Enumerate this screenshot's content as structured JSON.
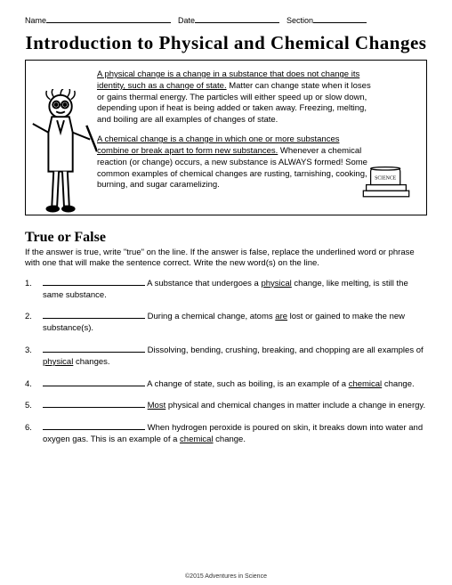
{
  "header": {
    "name_label": "Name",
    "date_label": "Date",
    "section_label": "Section",
    "name_blank_width": 140,
    "date_blank_width": 95,
    "section_blank_width": 60
  },
  "title": "Introduction to Physical and Chemical Changes",
  "intro": {
    "para1_u": "A physical change is a change in a substance that does not change its identity, such as a change of state.",
    "para1_rest": "  Matter can change state when it loses or gains thermal energy.  The particles will either speed up or slow down, depending upon if heat is being added or taken away.  Freezing, melting, and boiling are all examples of changes of state.",
    "para2_u": "A chemical change is a change in which one or more substances combine or break apart to form new substances.",
    "para2_rest": "  Whenever a chemical reaction (or change) occurs, a new substance is ALWAYS formed! Some common examples of chemical changes are rusting, tarnishing, cooking, burning, and sugar caramelizing.",
    "book_label": "SCIENCE"
  },
  "tf": {
    "title": "True or False",
    "instructions": "If the answer is true, write \"true\" on the line.  If the answer is false, replace the underlined word or phrase with one that will make the sentence correct.  Write the new word(s) on the line.",
    "items": [
      {
        "n": "1.",
        "pre": " A substance that undergoes a ",
        "u": "physical",
        "post": " change, like melting, is still the same substance."
      },
      {
        "n": "2.",
        "pre": " During a chemical change, atoms ",
        "u": "are",
        "post": " lost or gained to make the new substance(s)."
      },
      {
        "n": "3.",
        "pre": " Dissolving, bending, crushing, breaking, and chopping are all examples of ",
        "u": "physical",
        "post": " changes."
      },
      {
        "n": "4.",
        "pre": " A change of state, such as boiling, is an example of a ",
        "u": "chemical",
        "post": " change."
      },
      {
        "n": "5.",
        "pre": " ",
        "u": "Most",
        "post": " physical and chemical changes in matter include a change in energy."
      },
      {
        "n": "6.",
        "pre": " When hydrogen peroxide is poured on skin, it breaks down into water and oxygen gas.  This is an example of a ",
        "u": "chemical",
        "post": " change."
      }
    ]
  },
  "footer": "©2015 Adventures in Science"
}
